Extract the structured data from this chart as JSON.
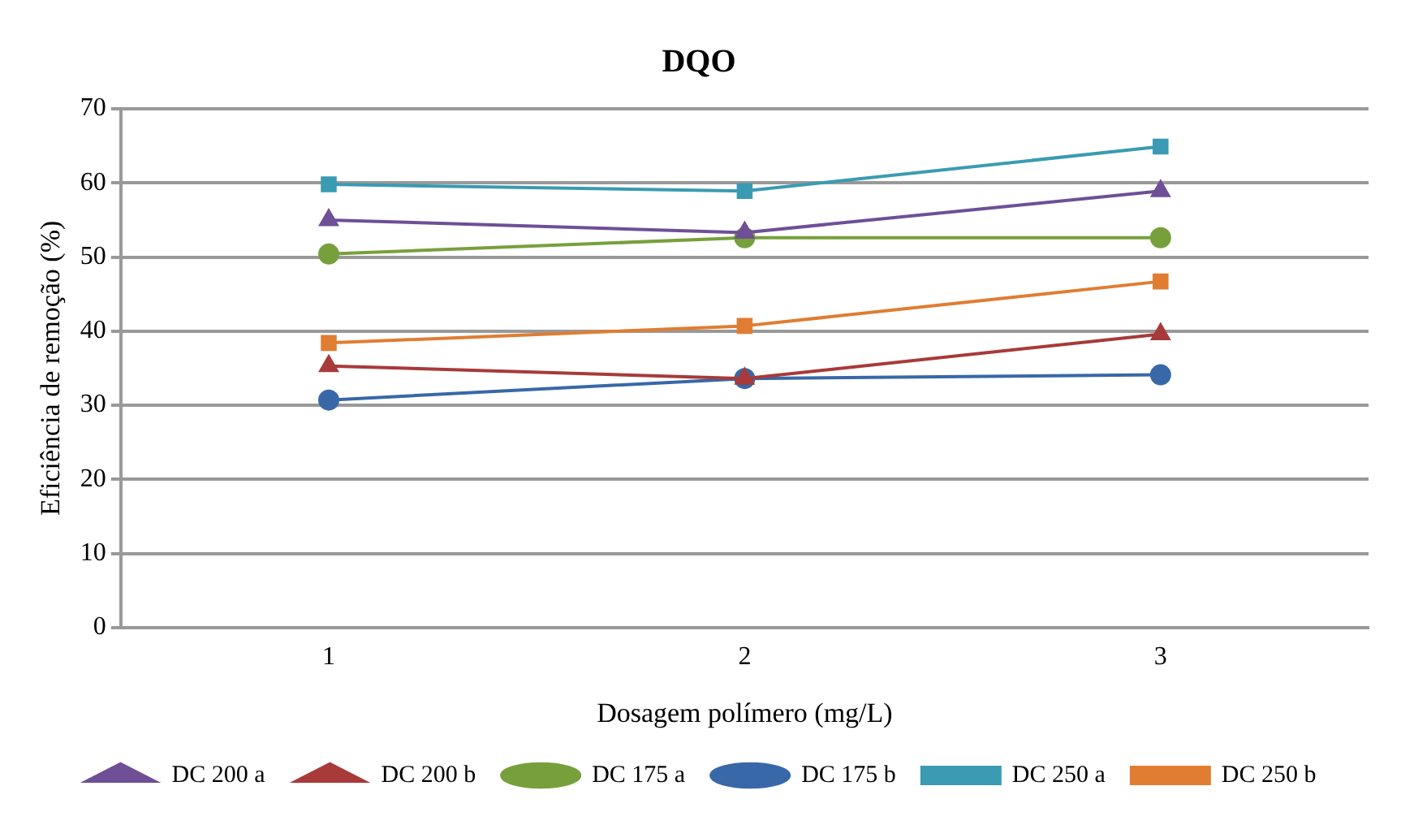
{
  "chart_data": {
    "type": "line",
    "title": "DQO",
    "xlabel": "Dosagem polímero (mg/L)",
    "ylabel": "Eficiência de remoção (%)",
    "categories": [
      "1",
      "2",
      "3"
    ],
    "ylim": [
      0,
      70
    ],
    "yticks": [
      0,
      10,
      20,
      30,
      40,
      50,
      60,
      70
    ],
    "grid": "y",
    "legend": "bottom",
    "line_style": "solid",
    "series": [
      {
        "name": "DC 175 a",
        "color": "#77a03c",
        "marker": "circle",
        "values": [
          50.4,
          52.6,
          52.6
        ]
      },
      {
        "name": "DC 175 b",
        "color": "#3868a8",
        "marker": "circle",
        "values": [
          30.7,
          33.6,
          34.1
        ]
      },
      {
        "name": "DC 200 a",
        "color": "#6f4f96",
        "marker": "triangle",
        "values": [
          55,
          53.3,
          58.9
        ]
      },
      {
        "name": "DC 200 b",
        "color": "#a83a3a",
        "marker": "triangle",
        "values": [
          35.3,
          33.6,
          39.6
        ]
      },
      {
        "name": "DC 250 a",
        "color": "#3a9bb2",
        "marker": "square",
        "values": [
          59.8,
          58.9,
          64.9
        ]
      },
      {
        "name": "DC 250 b",
        "color": "#e07d32",
        "marker": "square",
        "values": [
          38.4,
          40.7,
          46.7
        ]
      }
    ]
  }
}
